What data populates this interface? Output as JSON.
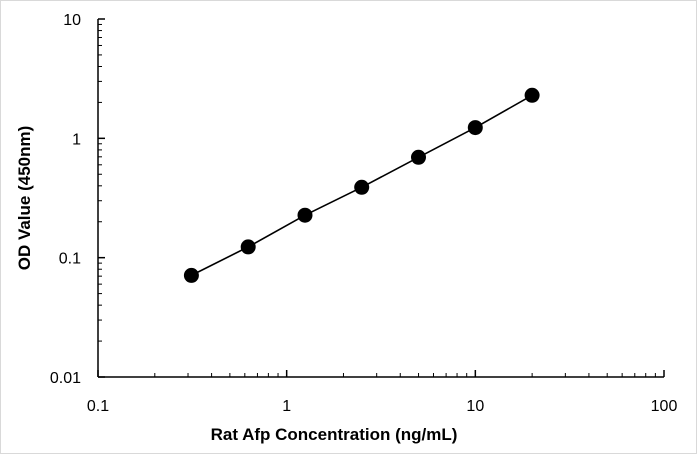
{
  "chart_data": {
    "type": "scatter",
    "title": "",
    "xlabel": "Rat Afp Concentration  (ng/mL)",
    "ylabel": "OD Value (450nm)",
    "x_scale": "log",
    "y_scale": "log",
    "xlim": [
      0.1,
      100
    ],
    "ylim": [
      0.01,
      10
    ],
    "x_ticks": [
      "0.1",
      "1",
      "10",
      "100"
    ],
    "y_ticks": [
      "0.01",
      "0.1",
      "1",
      "10"
    ],
    "grid": false,
    "legend": "none",
    "series": [
      {
        "x": [
          0.3125,
          0.625,
          1.25,
          2.5,
          5,
          10,
          20
        ],
        "y": [
          0.071,
          0.123,
          0.227,
          0.389,
          0.694,
          1.229,
          2.293
        ],
        "line": true,
        "marker": "circle",
        "color": "#000000"
      }
    ]
  }
}
